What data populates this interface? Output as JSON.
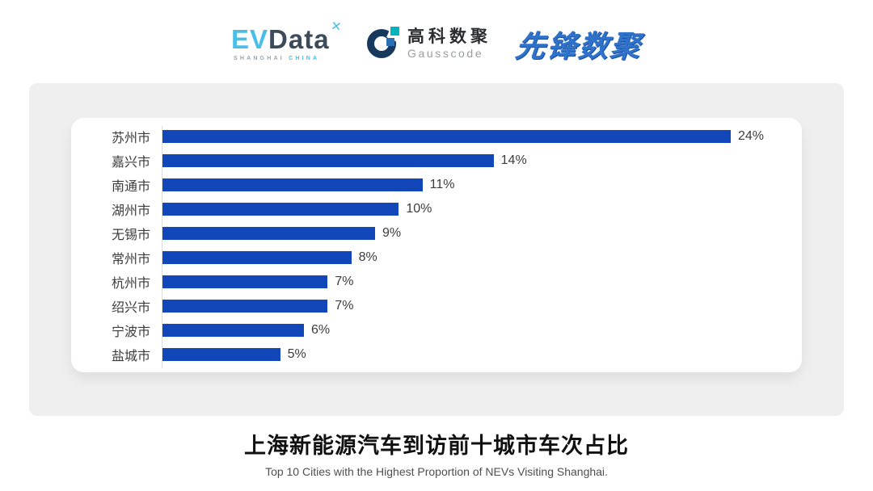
{
  "header": {
    "evdata_logo": {
      "ev": "EV",
      "data": "Data",
      "mark": "✕",
      "sub_left": "SHANGHAI ",
      "sub_right": "CHINA"
    },
    "gausscode_logo": {
      "cn": "高科数聚",
      "en": "Gausscode"
    },
    "pioneer_logo": {
      "text": "先锋数聚"
    }
  },
  "chart_data": {
    "type": "bar",
    "orientation": "horizontal",
    "categories": [
      "苏州市",
      "嘉兴市",
      "南通市",
      "湖州市",
      "无锡市",
      "常州市",
      "杭州市",
      "绍兴市",
      "宁波市",
      "盐城市"
    ],
    "values": [
      24,
      14,
      11,
      10,
      9,
      8,
      7,
      7,
      6,
      5
    ],
    "value_labels": [
      "24%",
      "14%",
      "11%",
      "10%",
      "9%",
      "8%",
      "7%",
      "7%",
      "6%",
      "5%"
    ],
    "xlim": [
      0,
      24
    ],
    "grid": false,
    "legend": false,
    "bar_color": "#1247BA",
    "title": "上海新能源汽车到访前十城市车次占比",
    "subtitle": "Top 10 Cities with the Highest Proportion of  NEVs Visiting Shanghai."
  },
  "footer": {
    "title": "上海新能源汽车到访前十城市车次占比",
    "subtitle": "Top 10 Cities with the Highest Proportion of  NEVs Visiting Shanghai."
  },
  "colors": {
    "bar_blue": "#1247BA",
    "panel_gray": "#EFEFEF",
    "evdata_blue": "#49BFE8",
    "evdata_dark": "#3D4A5A",
    "gauss_navy": "#17395D",
    "gauss_teal": "#00B4BE",
    "pioneer_blue": "#2E72CA"
  }
}
